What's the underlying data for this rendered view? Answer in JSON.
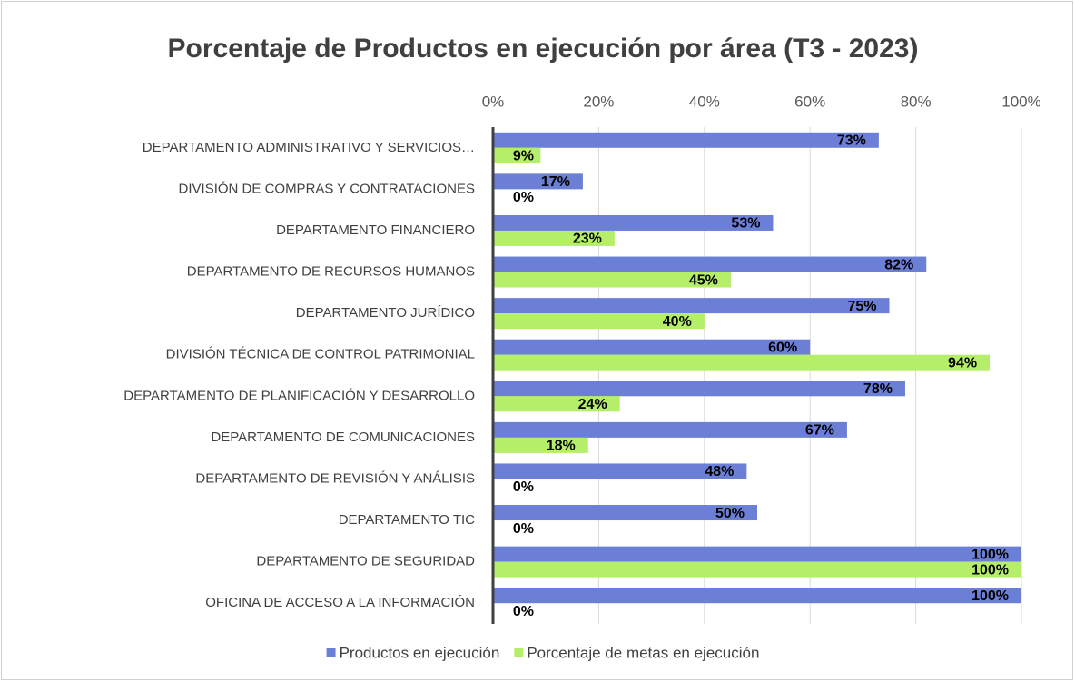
{
  "chart_data": {
    "type": "bar",
    "orientation": "horizontal",
    "title": "Porcentaje de Productos en ejecución por área (T3 - 2023)",
    "categories": [
      "DEPARTAMENTO ADMINISTRATIVO Y SERVICIOS…",
      "DIVISIÓN DE COMPRAS Y CONTRATACIONES",
      "DEPARTAMENTO FINANCIERO",
      "DEPARTAMENTO DE RECURSOS HUMANOS",
      "DEPARTAMENTO JURÍDICO",
      "DIVISIÓN TÉCNICA DE CONTROL PATRIMONIAL",
      "DEPARTAMENTO DE PLANIFICACIÓN Y DESARROLLO",
      "DEPARTAMENTO DE COMUNICACIONES",
      "DEPARTAMENTO DE REVISIÓN Y ANÁLISIS",
      "DEPARTAMENTO TIC",
      "DEPARTAMENTO DE SEGURIDAD",
      "OFICINA DE ACCESO A LA INFORMACIÓN"
    ],
    "series": [
      {
        "name": "Productos en ejecución",
        "color": "#6b7fd7",
        "values": [
          73,
          17,
          53,
          82,
          75,
          60,
          78,
          67,
          48,
          50,
          100,
          100
        ],
        "value_labels": [
          "73%",
          "17%",
          "53%",
          "82%",
          "75%",
          "60%",
          "78%",
          "67%",
          "48%",
          "50%",
          "100%",
          "100%"
        ]
      },
      {
        "name": "Porcentaje de metas en ejecución",
        "color": "#b5ef6a",
        "values": [
          9,
          0,
          23,
          45,
          40,
          94,
          24,
          18,
          0,
          0,
          100,
          0
        ],
        "value_labels": [
          "9%",
          "0%",
          "23%",
          "45%",
          "40%",
          "94%",
          "24%",
          "18%",
          "0%",
          "0%",
          "100%",
          "0%"
        ]
      }
    ],
    "xlim": [
      0,
      100
    ],
    "xticks": [
      {
        "value": 0,
        "label": "0%"
      },
      {
        "value": 20,
        "label": "20%"
      },
      {
        "value": 40,
        "label": "40%"
      },
      {
        "value": 60,
        "label": "60%"
      },
      {
        "value": 80,
        "label": "80%"
      },
      {
        "value": 100,
        "label": "100%"
      }
    ],
    "grid": true,
    "legend": "bottom"
  }
}
